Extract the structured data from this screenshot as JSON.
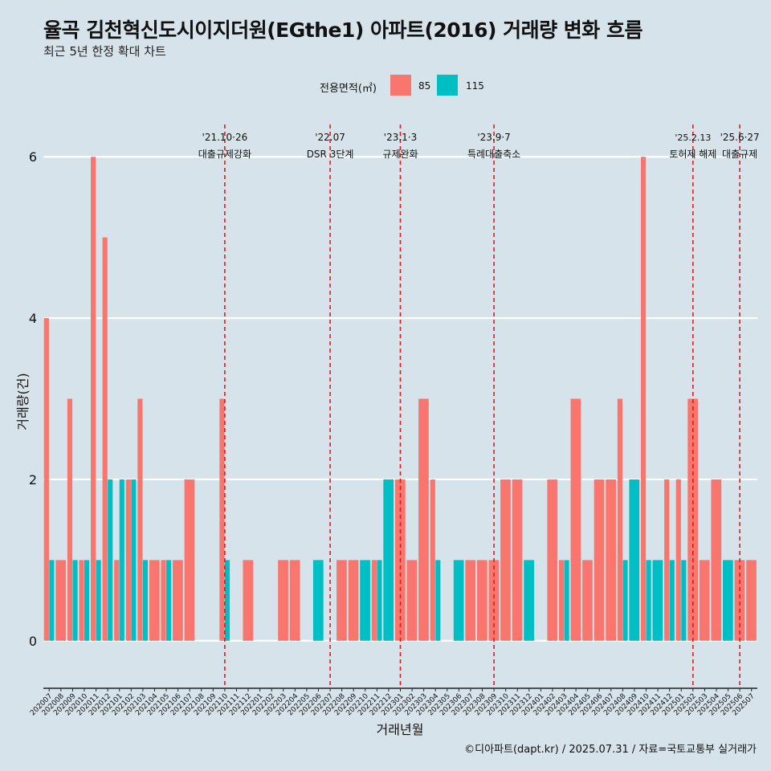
{
  "title": "율곡 김천혁신도시이지더원(EGthe1) 아파트(2016) 거래량 변화 흐름",
  "subtitle": "최근 5년 한정 확대 차트",
  "legend": {
    "title": "전용면적(㎡)",
    "items": [
      {
        "label": "85",
        "color": "#f8766d"
      },
      {
        "label": "115",
        "color": "#00bfc4"
      }
    ]
  },
  "caption": "©디아파트(dapt.kr) / 2025.07.31 / 자료=국토교통부 실거래가",
  "colors": {
    "background": "#d6e3ea",
    "grid": "#ffffff",
    "vline": "#e31a1c"
  },
  "chart_data": {
    "type": "bar",
    "xlabel": "거래년월",
    "ylabel": "거래량(건)",
    "ylim": [
      -0.45,
      6.55
    ],
    "yticks": [
      0,
      2,
      4,
      6
    ],
    "categories": [
      "202007",
      "202008",
      "202009",
      "202010",
      "202011",
      "202012",
      "202101",
      "202102",
      "202103",
      "202104",
      "202105",
      "202106",
      "202107",
      "202108",
      "202109",
      "202110",
      "202111",
      "202112",
      "202201",
      "202202",
      "202203",
      "202204",
      "202205",
      "202206",
      "202207",
      "202208",
      "202209",
      "202210",
      "202211",
      "202212",
      "202301",
      "202302",
      "202303",
      "202304",
      "202305",
      "202306",
      "202307",
      "202308",
      "202309",
      "202310",
      "202311",
      "202312",
      "202401",
      "202402",
      "202403",
      "202404",
      "202405",
      "202406",
      "202407",
      "202408",
      "202409",
      "202410",
      "202411",
      "202412",
      "202501",
      "202502",
      "202503",
      "202504",
      "202505",
      "202506",
      "202507"
    ],
    "series": [
      {
        "name": "85",
        "values": [
          4,
          1,
          3,
          1,
          6,
          5,
          1,
          2,
          3,
          1,
          1,
          1,
          2,
          0,
          0,
          3,
          0,
          1,
          0,
          0,
          1,
          1,
          0,
          0,
          0,
          1,
          1,
          0,
          1,
          0,
          2,
          1,
          3,
          2,
          0,
          0,
          1,
          1,
          1,
          2,
          2,
          0,
          0,
          2,
          1,
          3,
          1,
          2,
          2,
          3,
          0,
          6,
          0,
          2,
          2,
          3,
          1,
          2,
          0,
          1,
          1
        ]
      },
      {
        "name": "115",
        "values": [
          1,
          0,
          1,
          1,
          1,
          2,
          2,
          2,
          1,
          0,
          1,
          0,
          0,
          0,
          0,
          1,
          0,
          0,
          0,
          0,
          0,
          0,
          0,
          1,
          0,
          0,
          0,
          1,
          1,
          2,
          0,
          0,
          0,
          1,
          0,
          1,
          0,
          0,
          0,
          0,
          0,
          1,
          0,
          0,
          1,
          0,
          0,
          0,
          0,
          1,
          2,
          1,
          1,
          1,
          1,
          0,
          0,
          0,
          1,
          0,
          0
        ]
      }
    ],
    "events": [
      {
        "month": "202110",
        "date": "'21.10·26",
        "label": "대출규제강화"
      },
      {
        "month": "202207",
        "date": "'22.07",
        "label": "DSR 3단계"
      },
      {
        "month": "202301",
        "date": "'23.1·3",
        "label": "규제완화"
      },
      {
        "month": "202309",
        "date": "'23.9·7",
        "label": "특례대출축소"
      },
      {
        "month": "202502",
        "date": "'25.2.13",
        "label": "토허제 해제"
      },
      {
        "month": "202506",
        "date": "'25.6·27",
        "label": "대출규제"
      }
    ]
  }
}
